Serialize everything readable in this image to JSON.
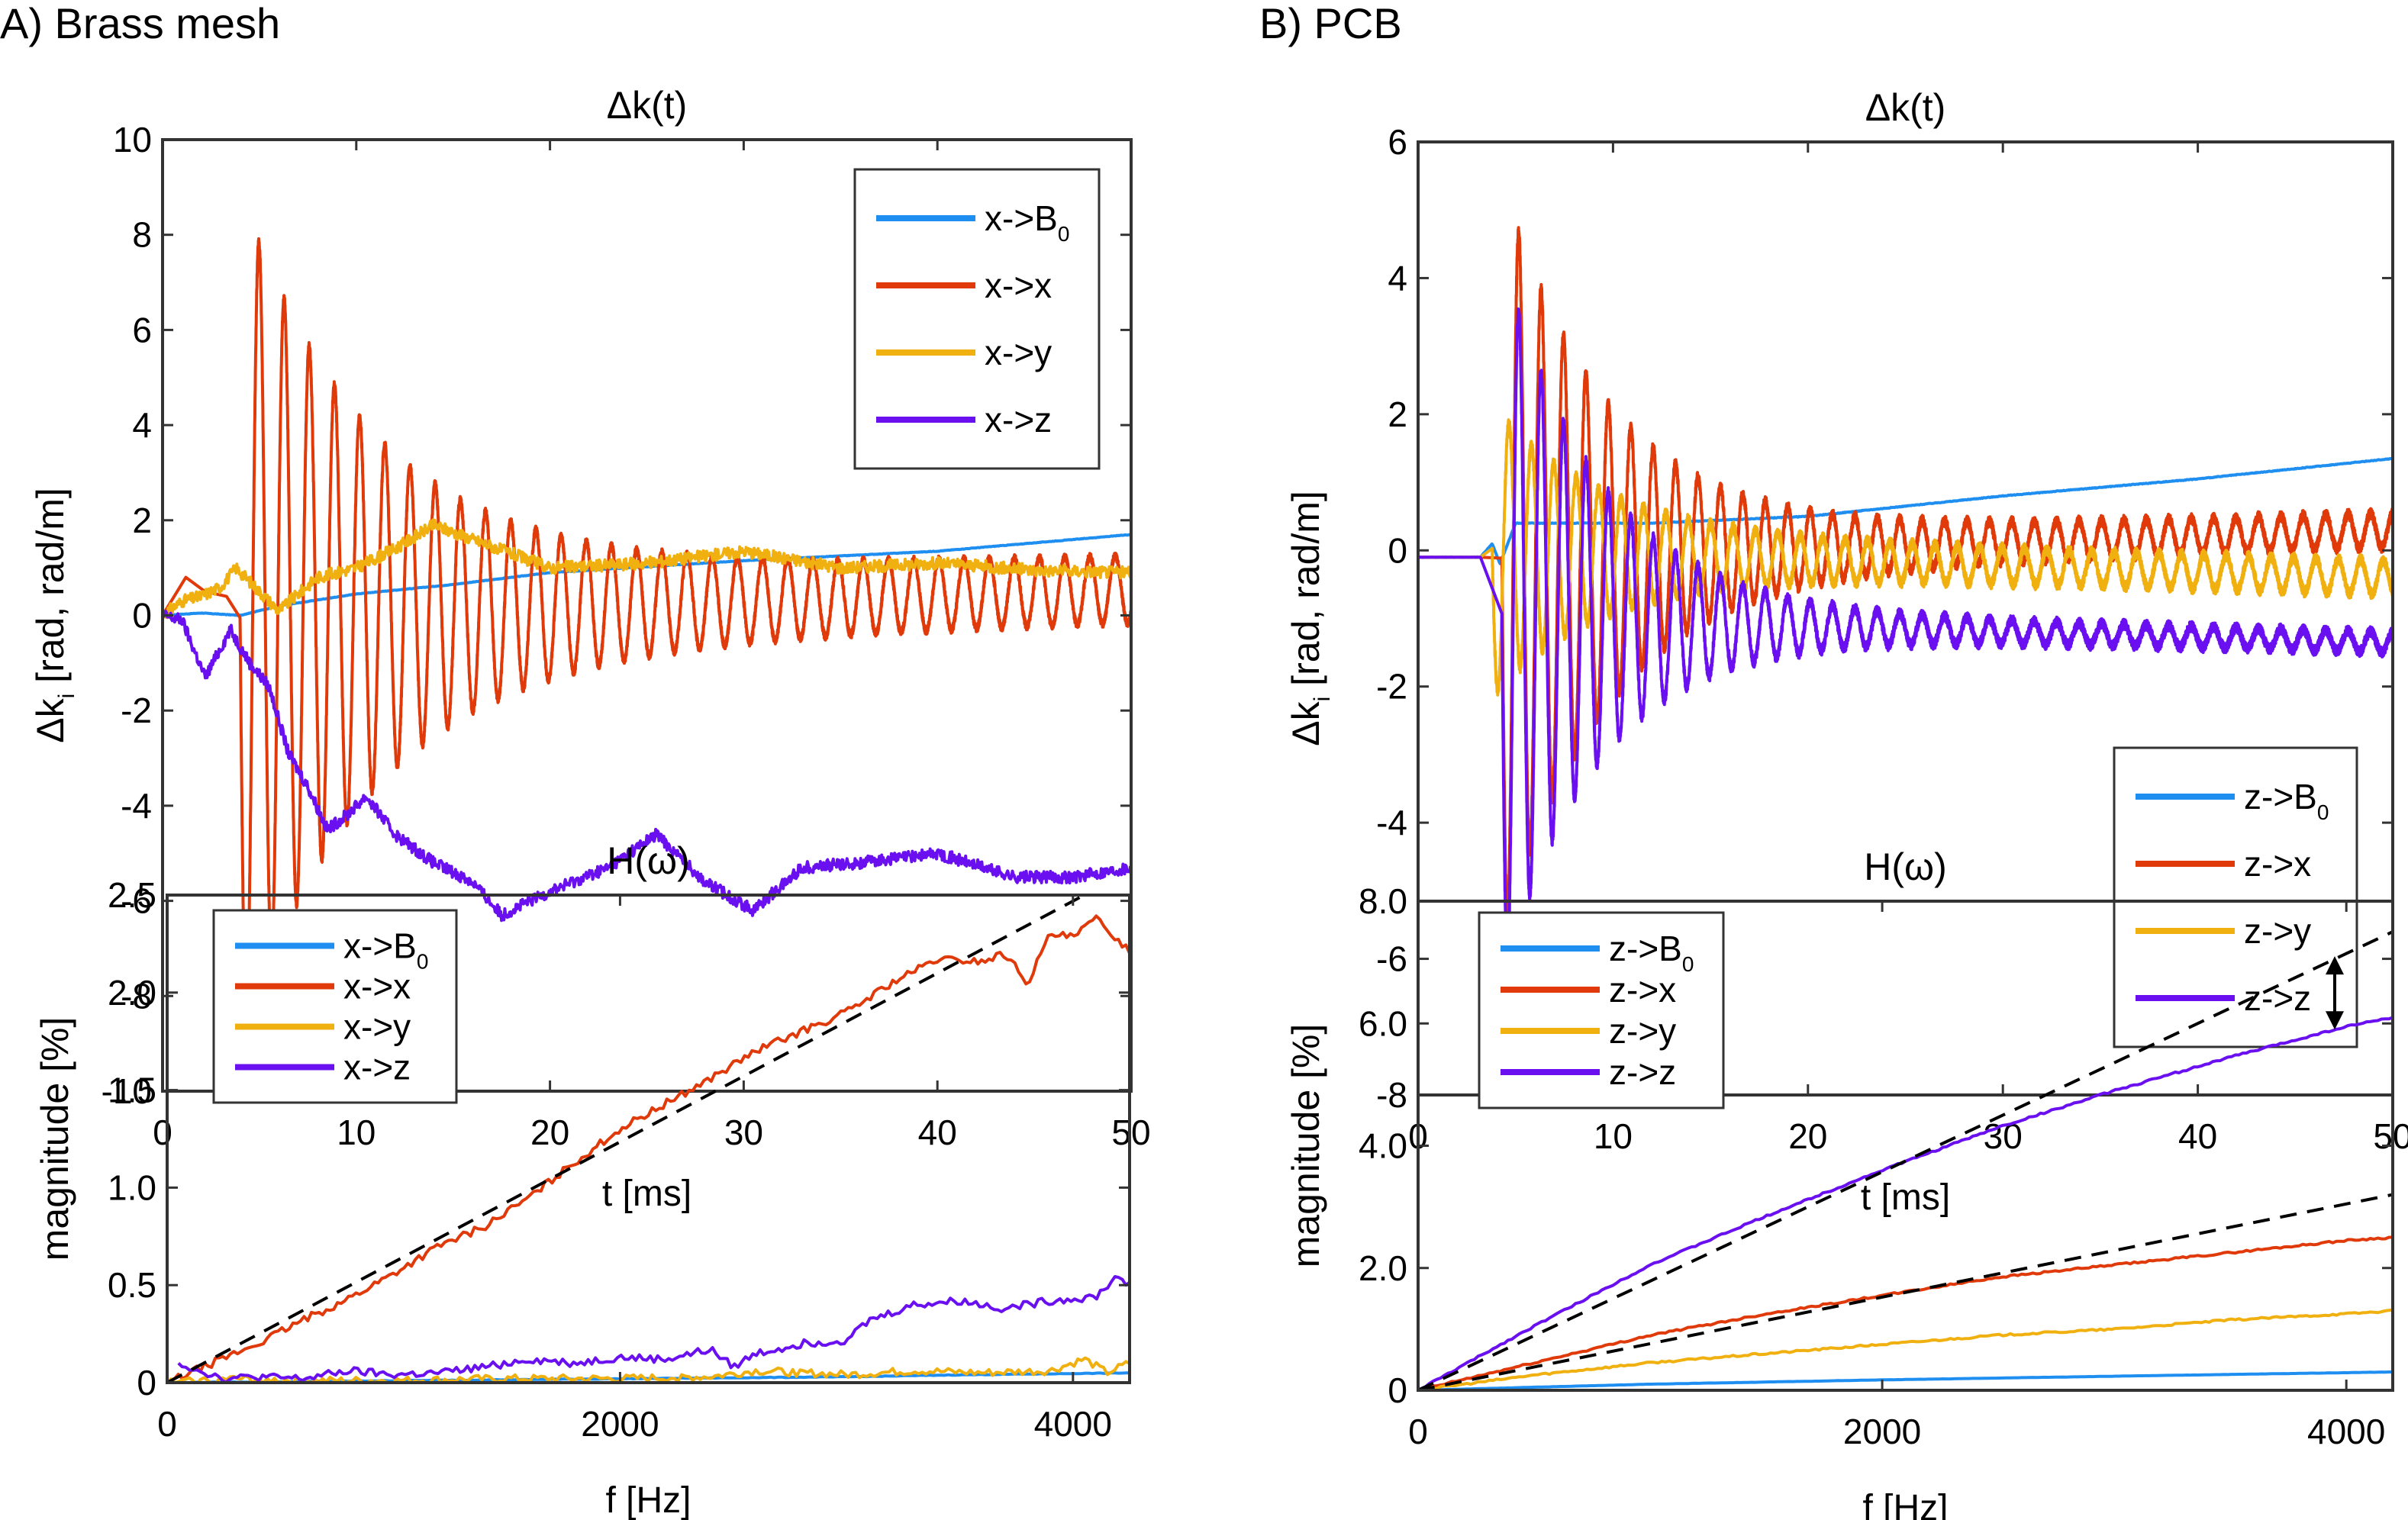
{
  "panels": {
    "A": {
      "label": "A) Brass mesh"
    },
    "B": {
      "label": "B) PCB"
    }
  },
  "colors": {
    "B0": "#1f8ef1",
    "x": "#e03a0a",
    "y": "#f0b010",
    "z": "#6a10f0",
    "fit": "#000000"
  },
  "chart_data": [
    {
      "id": "A-top",
      "type": "line",
      "title": "Δk(t)",
      "xlabel": "t [ms]",
      "ylabel": "Δk_i [rad, rad/m]",
      "xlim": [
        0,
        50
      ],
      "ylim": [
        -10,
        10
      ],
      "xticks": [
        0,
        10,
        20,
        30,
        40,
        50
      ],
      "yticks": [
        -10,
        -8,
        -6,
        -4,
        -2,
        0,
        2,
        4,
        6,
        8,
        10
      ],
      "legend_position": "top-right",
      "series": [
        {
          "name": "x->B0",
          "key": "B0",
          "x": [
            0,
            2,
            4,
            6,
            10,
            15,
            20,
            30,
            40,
            50
          ],
          "y": [
            0,
            0.05,
            0,
            0.2,
            0.45,
            0.65,
            0.9,
            1.15,
            1.35,
            1.7
          ]
        },
        {
          "name": "x->x",
          "key": "x",
          "osc": {
            "t0": 4.0,
            "amp": 8.2,
            "period": 1.3,
            "decay": 7.0,
            "floor": 0.7,
            "mean_start": 0,
            "mean_end": 0.55
          },
          "pre": [
            [
              0,
              0
            ],
            [
              1.2,
              0.8
            ],
            [
              2.2,
              0.5
            ],
            [
              3.3,
              0.4
            ]
          ]
        },
        {
          "name": "x->y",
          "key": "y",
          "x": [
            0,
            1,
            2,
            3,
            3.8,
            5,
            6,
            8,
            10,
            12,
            14,
            16,
            18,
            20,
            25,
            30,
            35,
            40,
            45,
            50
          ],
          "y": [
            0,
            0.3,
            0.4,
            0.6,
            1.0,
            0.5,
            0.1,
            0.8,
            1.0,
            1.4,
            1.9,
            1.6,
            1.3,
            1.0,
            1.1,
            1.35,
            1.0,
            1.1,
            0.95,
            0.9
          ]
        },
        {
          "name": "x->z",
          "key": "z",
          "x": [
            0,
            1,
            2.2,
            3.5,
            4.5,
            5.5,
            6.5,
            7.5,
            8.5,
            9.5,
            10.5,
            12,
            14,
            16,
            17.5,
            20,
            23,
            25.5,
            28,
            30.5,
            33,
            36,
            40,
            44,
            47,
            50
          ],
          "y": [
            0,
            -0.1,
            -1.3,
            -0.3,
            -1.0,
            -1.5,
            -2.9,
            -3.6,
            -4.5,
            -4.2,
            -3.8,
            -4.6,
            -5.2,
            -5.6,
            -6.3,
            -5.8,
            -5.3,
            -4.6,
            -5.6,
            -6.2,
            -5.3,
            -5.2,
            -5.0,
            -5.5,
            -5.5,
            -5.3
          ]
        }
      ]
    },
    {
      "id": "B-top",
      "type": "line",
      "title": "Δk(t)",
      "xlabel": "t [ms]",
      "ylabel": "Δk_i [rad, rad/m]",
      "xlim": [
        0,
        50
      ],
      "ylim": [
        -8,
        6
      ],
      "xticks": [
        0,
        10,
        20,
        30,
        40,
        50
      ],
      "yticks": [
        -8,
        -6,
        -4,
        -2,
        0,
        2,
        4,
        6
      ],
      "legend_position": "bottom-right",
      "series": [
        {
          "name": "z->B0",
          "key": "B0",
          "x": [
            0,
            3.2,
            3.8,
            4.2,
            5,
            6,
            8,
            12,
            16,
            20,
            30,
            40,
            50
          ],
          "y": [
            -0.1,
            -0.1,
            0.1,
            -0.2,
            0.4,
            0.4,
            0.4,
            0.4,
            0.45,
            0.5,
            0.8,
            1.05,
            1.35
          ]
        },
        {
          "name": "z->x",
          "key": "x",
          "osc": {
            "t0": 4.3,
            "amp": 5.3,
            "period": 1.15,
            "decay": 5.5,
            "floor": 0.25,
            "mean_start": -0.1,
            "mean_end": 0.3
          },
          "pre": [
            [
              0,
              -0.1
            ],
            [
              3.2,
              -0.1
            ]
          ]
        },
        {
          "name": "z->y",
          "key": "y",
          "osc": {
            "t0": 3.8,
            "amp": 1.9,
            "period": 1.15,
            "decay": 5.5,
            "floor": 0.25,
            "mean_start": 0,
            "mean_end": -0.4
          },
          "pre": [
            [
              0,
              -0.1
            ],
            [
              3.2,
              -0.1
            ]
          ]
        },
        {
          "name": "z->z",
          "key": "z",
          "osc": {
            "t0": 4.3,
            "amp": 5.2,
            "period": 1.15,
            "decay": 5.0,
            "floor": 0.15,
            "mean_start": -1.0,
            "mean_end": -1.35
          },
          "pre": [
            [
              0,
              -0.1
            ],
            [
              3.2,
              -0.1
            ]
          ]
        }
      ]
    },
    {
      "id": "A-bottom",
      "type": "line",
      "title": "H(ω)",
      "xlabel": "f [Hz]",
      "ylabel": "magnitude [%]",
      "xlim": [
        0,
        4250
      ],
      "ylim": [
        0,
        2.5
      ],
      "xticks": [
        0,
        2000,
        4000
      ],
      "yticks": [
        0,
        0.5,
        1.0,
        1.5,
        2.0,
        2.5
      ],
      "ytick_labels": [
        "0",
        "0.5",
        "1.0",
        "1.5",
        "2.0",
        "2.5"
      ],
      "legend_position": "top-left",
      "series": [
        {
          "name": "x->B0",
          "key": "B0",
          "x": [
            0,
            1000,
            2000,
            3000,
            3500,
            4250
          ],
          "y": [
            0,
            0.01,
            0.02,
            0.03,
            0.04,
            0.05
          ]
        },
        {
          "name": "x->x",
          "key": "x",
          "x": [
            0,
            200,
            400,
            600,
            800,
            1000,
            1200,
            1400,
            1600,
            1800,
            2000,
            2200,
            2400,
            2600,
            2800,
            3000,
            3200,
            3400,
            3600,
            3700,
            3800,
            3900,
            4000,
            4100,
            4200,
            4250
          ],
          "y": [
            0,
            0.1,
            0.2,
            0.32,
            0.43,
            0.56,
            0.7,
            0.8,
            0.95,
            1.13,
            1.3,
            1.43,
            1.56,
            1.7,
            1.8,
            1.9,
            2.05,
            2.17,
            2.16,
            2.2,
            2.05,
            2.3,
            2.28,
            2.38,
            2.27,
            2.22
          ]
        },
        {
          "name": "x->y",
          "key": "y",
          "x": [
            0,
            300,
            600,
            1000,
            1500,
            2000,
            2400,
            2600,
            2800,
            3000,
            3300,
            3600,
            3900,
            4050,
            4150,
            4250
          ],
          "y": [
            0,
            0.02,
            0.01,
            0.01,
            0.02,
            0.02,
            0.03,
            0.06,
            0.05,
            0.04,
            0.06,
            0.05,
            0.06,
            0.12,
            0.05,
            0.1
          ]
        },
        {
          "name": "x->z",
          "key": "z",
          "x": [
            50,
            150,
            250,
            400,
            600,
            800,
            1000,
            1200,
            1400,
            1600,
            1800,
            2000,
            2200,
            2400,
            2500,
            2600,
            2800,
            3000,
            3100,
            3300,
            3500,
            3700,
            3900,
            4100,
            4200,
            4250
          ],
          "y": [
            0.1,
            0.06,
            0.02,
            0.03,
            0.02,
            0.06,
            0.04,
            0.05,
            0.08,
            0.12,
            0.1,
            0.13,
            0.12,
            0.17,
            0.08,
            0.15,
            0.2,
            0.22,
            0.32,
            0.4,
            0.42,
            0.38,
            0.42,
            0.44,
            0.55,
            0.5
          ]
        }
      ],
      "fits": [
        {
          "x": [
            0,
            4050
          ],
          "y": [
            0,
            2.5
          ]
        }
      ]
    },
    {
      "id": "B-bottom",
      "type": "line",
      "title": "H(ω)",
      "xlabel": "f [Hz]",
      "ylabel": "magnitude [%]",
      "xlim": [
        0,
        4200
      ],
      "ylim": [
        0,
        8.0
      ],
      "xticks": [
        0,
        2000,
        4000
      ],
      "yticks": [
        0,
        2.0,
        4.0,
        6.0,
        8.0
      ],
      "ytick_labels": [
        "0",
        "2.0",
        "4.0",
        "6.0",
        "8.0"
      ],
      "legend_position": "top-left",
      "series": [
        {
          "name": "z->B0",
          "key": "B0",
          "x": [
            0,
            1000,
            2000,
            3000,
            4200
          ],
          "y": [
            0,
            0.1,
            0.17,
            0.23,
            0.3
          ]
        },
        {
          "name": "z->x",
          "key": "x",
          "x": [
            0,
            500,
            1000,
            1500,
            2000,
            2500,
            3000,
            3500,
            4000,
            4200
          ],
          "y": [
            0,
            0.45,
            0.9,
            1.25,
            1.55,
            1.85,
            2.05,
            2.25,
            2.45,
            2.5
          ]
        },
        {
          "name": "z->y",
          "key": "y",
          "x": [
            0,
            500,
            1000,
            1500,
            2000,
            2500,
            3000,
            3500,
            4000,
            4200
          ],
          "y": [
            0,
            0.25,
            0.45,
            0.6,
            0.75,
            0.9,
            1.0,
            1.15,
            1.25,
            1.3
          ]
        },
        {
          "name": "z->z",
          "key": "z",
          "x": [
            0,
            500,
            1000,
            1500,
            2000,
            2500,
            3000,
            3500,
            4000,
            4200
          ],
          "y": [
            0,
            1.05,
            2.05,
            2.85,
            3.6,
            4.3,
            4.9,
            5.45,
            5.95,
            6.1
          ]
        }
      ],
      "fits": [
        {
          "x": [
            0,
            4200
          ],
          "y": [
            0,
            7.5
          ]
        },
        {
          "x": [
            0,
            4200
          ],
          "y": [
            0,
            3.2
          ]
        }
      ],
      "annotation": {
        "type": "double-arrow",
        "x": 3950,
        "y_from": 7.1,
        "y_to": 5.9
      }
    }
  ]
}
